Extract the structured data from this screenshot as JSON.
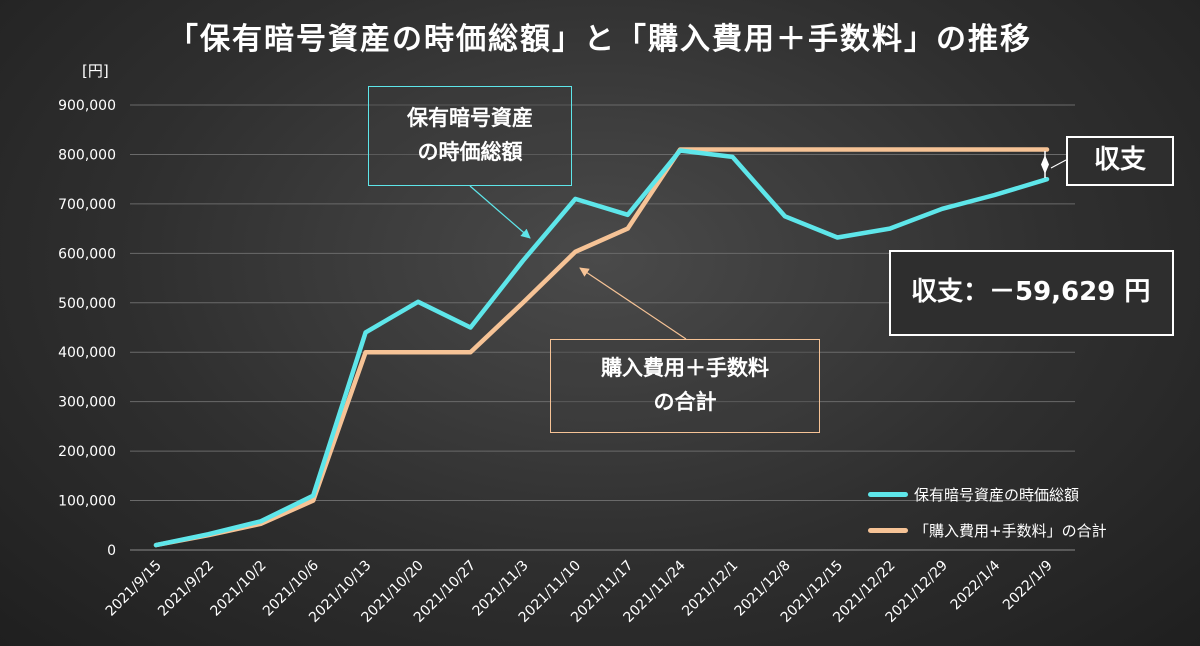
{
  "title": "「保有暗号資産の時価総額」と「購入費用＋手数料」の推移",
  "y_unit": "[円]",
  "annotations": {
    "market_box": [
      "保有暗号資産",
      "の時価総額"
    ],
    "cost_box": [
      "購入費用＋手数料",
      "の合計"
    ],
    "balance_label": "収支",
    "balance_result": "収支：－59,629 円"
  },
  "colors": {
    "market": "#5ee6ea",
    "cost": "#f6c396",
    "grid": "#6a6a6a",
    "text": "#ffffff"
  },
  "chart_data": {
    "type": "line",
    "title": "「保有暗号資産の時価総額」と「購入費用＋手数料」の推移",
    "ylabel": "[円]",
    "xlabel": "",
    "ylim": [
      0,
      900000
    ],
    "yticks": [
      0,
      100000,
      200000,
      300000,
      400000,
      500000,
      600000,
      700000,
      800000,
      900000
    ],
    "ytick_labels": [
      "0",
      "100,000",
      "200,000",
      "300,000",
      "400,000",
      "500,000",
      "600,000",
      "700,000",
      "800,000",
      "900,000"
    ],
    "categories": [
      "2021/9/15",
      "2021/9/22",
      "2021/10/2",
      "2021/10/6",
      "2021/10/13",
      "2021/10/20",
      "2021/10/27",
      "2021/11/3",
      "2021/11/10",
      "2021/11/17",
      "2021/11/24",
      "2021/12/1",
      "2021/12/8",
      "2021/12/15",
      "2021/12/22",
      "2021/12/29",
      "2022/1/4",
      "2022/1/9"
    ],
    "grid": true,
    "legend_position": "bottom-right",
    "series": [
      {
        "name": "保有暗号資産の時価総額",
        "color": "#5ee6ea",
        "values": [
          10000,
          32000,
          58000,
          110000,
          440000,
          502000,
          450000,
          585000,
          710000,
          678000,
          808000,
          795000,
          675000,
          632000,
          650000,
          690000,
          718000,
          750000
        ]
      },
      {
        "name": "「購入費用+手数料」の合計",
        "color": "#f6c396",
        "values": [
          10000,
          30000,
          53000,
          100000,
          400000,
          400000,
          400000,
          500000,
          603000,
          650000,
          810000,
          810000,
          810000,
          810000,
          810000,
          810000,
          810000,
          810000
        ]
      }
    ]
  }
}
